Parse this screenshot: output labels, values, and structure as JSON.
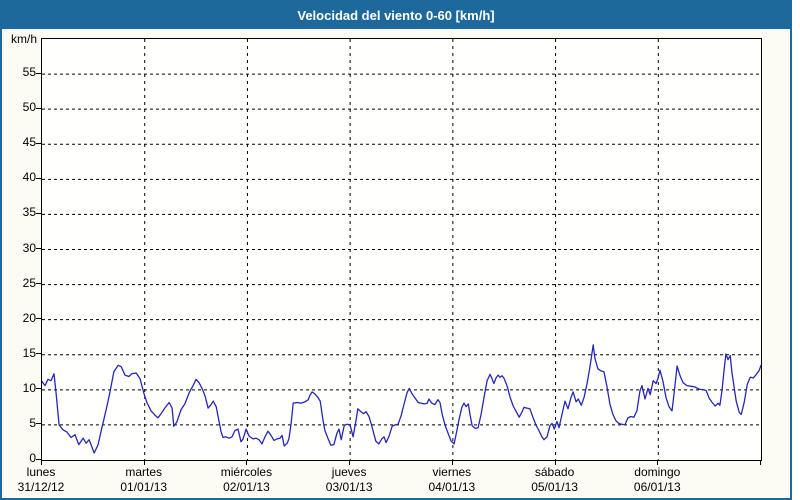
{
  "window": {
    "title": "Velocidad del viento 0-60 [km/h]"
  },
  "colors": {
    "frame": "#1e699c",
    "titlebar_bg": "#1e699c",
    "title_text": "#ffffff",
    "content_bg": "#fcfcf4",
    "plot_bg": "#fffffe",
    "grid": "#000000",
    "axis_text": "#000000",
    "line": "#2626b8"
  },
  "chart_data": {
    "type": "line",
    "title": "Velocidad del viento 0-60 [km/h]",
    "ylabel": "km/h",
    "xlabel": "",
    "ylim": [
      0,
      60
    ],
    "ytick_step": 5,
    "ytick_labels": [
      "0",
      "5",
      "10",
      "15",
      "20",
      "25",
      "30",
      "35",
      "40",
      "45",
      "50",
      "55"
    ],
    "grid": "dashed",
    "legend": "none",
    "x_unit": "hours",
    "xlim": [
      0,
      168
    ],
    "days": [
      {
        "name": "lunes",
        "date": "31/12/12"
      },
      {
        "name": "martes",
        "date": "01/01/13"
      },
      {
        "name": "miércoles",
        "date": "02/01/13"
      },
      {
        "name": "jueves",
        "date": "03/01/13"
      },
      {
        "name": "viernes",
        "date": "04/01/13"
      },
      {
        "name": "sábado",
        "date": "05/01/13"
      },
      {
        "name": "domingo",
        "date": "06/01/13"
      }
    ],
    "series": [
      {
        "name": "Velocidad del viento",
        "color": "#2626b8",
        "points": [
          [
            0,
            11.2
          ],
          [
            0.7,
            10.6
          ],
          [
            1.4,
            11.5
          ],
          [
            2.1,
            11.3
          ],
          [
            2.8,
            12.3
          ],
          [
            3.3,
            9.5
          ],
          [
            4,
            5
          ],
          [
            4.9,
            4.3
          ],
          [
            5.8,
            4
          ],
          [
            6.8,
            3.2
          ],
          [
            7.7,
            3.6
          ],
          [
            8.6,
            2.2
          ],
          [
            9.6,
            3.1
          ],
          [
            10.3,
            2.4
          ],
          [
            11,
            2.9
          ],
          [
            12.2,
            1
          ],
          [
            13.1,
            2.2
          ],
          [
            14,
            4.6
          ],
          [
            15,
            7.2
          ],
          [
            15.9,
            9.7
          ],
          [
            16.8,
            12.6
          ],
          [
            17.8,
            13.5
          ],
          [
            18.5,
            13.3
          ],
          [
            19.4,
            12.1
          ],
          [
            20.3,
            11.9
          ],
          [
            21,
            12.3
          ],
          [
            22,
            12.4
          ],
          [
            22.9,
            11.6
          ],
          [
            23.8,
            9.5
          ],
          [
            24.5,
            8.2
          ],
          [
            25.5,
            7
          ],
          [
            26.4,
            6.4
          ],
          [
            27.1,
            6
          ],
          [
            27.8,
            6.6
          ],
          [
            28.7,
            7.4
          ],
          [
            29.7,
            8.2
          ],
          [
            30.4,
            7.4
          ],
          [
            30.8,
            4.8
          ],
          [
            31.5,
            5.4
          ],
          [
            32.5,
            7.2
          ],
          [
            33.4,
            8
          ],
          [
            34.4,
            9.6
          ],
          [
            35.3,
            10.6
          ],
          [
            36,
            11.5
          ],
          [
            36.7,
            11
          ],
          [
            37.4,
            10.2
          ],
          [
            38.1,
            9.1
          ],
          [
            38.8,
            7.4
          ],
          [
            39.5,
            7.9
          ],
          [
            40,
            8.4
          ],
          [
            40.7,
            7.6
          ],
          [
            41.4,
            5.4
          ],
          [
            41.8,
            4.1
          ],
          [
            42.3,
            3.2
          ],
          [
            43,
            3.3
          ],
          [
            43.7,
            3.1
          ],
          [
            44.4,
            3.3
          ],
          [
            45.1,
            4.2
          ],
          [
            45.8,
            4.4
          ],
          [
            46.5,
            2.6
          ],
          [
            47,
            3
          ],
          [
            47.7,
            4.4
          ],
          [
            48.4,
            3.4
          ],
          [
            49.3,
            3
          ],
          [
            50,
            3.1
          ],
          [
            50.7,
            2.9
          ],
          [
            51.4,
            2.3
          ],
          [
            52.1,
            3.3
          ],
          [
            52.8,
            4.1
          ],
          [
            53.5,
            3.5
          ],
          [
            54.2,
            2.8
          ],
          [
            54.9,
            3
          ],
          [
            55.6,
            3.1
          ],
          [
            56.1,
            3.5
          ],
          [
            56.6,
            2
          ],
          [
            57.3,
            2.4
          ],
          [
            57.7,
            3
          ],
          [
            58.2,
            5.2
          ],
          [
            58.7,
            8.1
          ],
          [
            59.6,
            8.2
          ],
          [
            60.5,
            8.1
          ],
          [
            61.5,
            8.3
          ],
          [
            62.2,
            8.6
          ],
          [
            62.6,
            9.2
          ],
          [
            63.1,
            9.7
          ],
          [
            63.8,
            9.4
          ],
          [
            64.5,
            8.9
          ],
          [
            65,
            8.4
          ],
          [
            65.7,
            5.5
          ],
          [
            66.1,
            4.2
          ],
          [
            66.8,
            3.1
          ],
          [
            67.5,
            2.1
          ],
          [
            68.2,
            2.2
          ],
          [
            68.9,
            3.8
          ],
          [
            69.4,
            4.4
          ],
          [
            69.9,
            2.9
          ],
          [
            70.6,
            4.9
          ],
          [
            71.3,
            5.1
          ],
          [
            72,
            5
          ],
          [
            72.7,
            3.3
          ],
          [
            73.4,
            5.7
          ],
          [
            73.8,
            7.3
          ],
          [
            74.5,
            6.9
          ],
          [
            75.2,
            6.6
          ],
          [
            75.7,
            6.9
          ],
          [
            76.4,
            6.2
          ],
          [
            76.9,
            5.2
          ],
          [
            77.6,
            3.6
          ],
          [
            78,
            2.7
          ],
          [
            78.7,
            2.3
          ],
          [
            79.4,
            3
          ],
          [
            79.9,
            3.3
          ],
          [
            80.4,
            2.5
          ],
          [
            81.1,
            3.4
          ],
          [
            81.8,
            4.8
          ],
          [
            82.5,
            5
          ],
          [
            83.2,
            5.1
          ],
          [
            83.9,
            6.3
          ],
          [
            84.6,
            8
          ],
          [
            85.3,
            9.6
          ],
          [
            85.8,
            10.2
          ],
          [
            86.5,
            9.4
          ],
          [
            87.2,
            8.8
          ],
          [
            87.9,
            8.2
          ],
          [
            88.6,
            8.1
          ],
          [
            89.3,
            8
          ],
          [
            90,
            8.1
          ],
          [
            90.4,
            8.7
          ],
          [
            91.1,
            8.1
          ],
          [
            91.8,
            7.9
          ],
          [
            92.5,
            8.6
          ],
          [
            93,
            8.2
          ],
          [
            93.5,
            6.5
          ],
          [
            94.2,
            4.9
          ],
          [
            94.9,
            3.8
          ],
          [
            95.6,
            2.7
          ],
          [
            96.3,
            2.3
          ],
          [
            96.7,
            3.5
          ],
          [
            97.4,
            5.6
          ],
          [
            98.1,
            7.5
          ],
          [
            98.6,
            8.1
          ],
          [
            99.1,
            7.6
          ],
          [
            99.6,
            8
          ],
          [
            100,
            6.5
          ],
          [
            100.5,
            4.9
          ],
          [
            101.2,
            4.5
          ],
          [
            101.9,
            4.6
          ],
          [
            102.6,
            6.5
          ],
          [
            103.3,
            9
          ],
          [
            104,
            11.3
          ],
          [
            104.7,
            12.2
          ],
          [
            105.2,
            11.5
          ],
          [
            105.6,
            10.9
          ],
          [
            106.1,
            11.7
          ],
          [
            106.6,
            12.1
          ],
          [
            107,
            11.8
          ],
          [
            107.5,
            12
          ],
          [
            108,
            11.6
          ],
          [
            108.7,
            10.5
          ],
          [
            109.4,
            8.9
          ],
          [
            110.1,
            7.7
          ],
          [
            110.8,
            6.9
          ],
          [
            111.5,
            6.1
          ],
          [
            112.2,
            6.9
          ],
          [
            112.6,
            7.5
          ],
          [
            113.3,
            7.4
          ],
          [
            114,
            7.3
          ],
          [
            114.7,
            6.1
          ],
          [
            115.4,
            5
          ],
          [
            116.1,
            4.2
          ],
          [
            116.8,
            3.3
          ],
          [
            117.3,
            2.9
          ],
          [
            118,
            3.3
          ],
          [
            118.7,
            4.9
          ],
          [
            119.2,
            5.2
          ],
          [
            119.7,
            4.4
          ],
          [
            120.3,
            5.5
          ],
          [
            120.8,
            4.6
          ],
          [
            121.5,
            6.5
          ],
          [
            122.2,
            8.4
          ],
          [
            122.9,
            7.3
          ],
          [
            123.6,
            8.9
          ],
          [
            124.1,
            9.7
          ],
          [
            124.8,
            8.3
          ],
          [
            125.3,
            8.7
          ],
          [
            126,
            7.8
          ],
          [
            126.7,
            9
          ],
          [
            127.4,
            11
          ],
          [
            128.1,
            13.5
          ],
          [
            128.8,
            16.4
          ],
          [
            129.2,
            14.5
          ],
          [
            129.9,
            13
          ],
          [
            130.6,
            12.7
          ],
          [
            131.3,
            12.6
          ],
          [
            132,
            10.5
          ],
          [
            132.7,
            8
          ],
          [
            133.4,
            6.5
          ],
          [
            134.1,
            5.6
          ],
          [
            134.8,
            5.2
          ],
          [
            135.5,
            5.1
          ],
          [
            136.2,
            5
          ],
          [
            136.9,
            6
          ],
          [
            137.6,
            6.2
          ],
          [
            138.3,
            6.1
          ],
          [
            139,
            7
          ],
          [
            139.7,
            9.8
          ],
          [
            140.2,
            10.6
          ],
          [
            140.9,
            8.7
          ],
          [
            141.6,
            10.2
          ],
          [
            142.1,
            9.3
          ],
          [
            142.8,
            11.3
          ],
          [
            143.5,
            10.9
          ],
          [
            143.9,
            11.6
          ],
          [
            144.4,
            12.8
          ],
          [
            145.1,
            11.2
          ],
          [
            145.8,
            8.9
          ],
          [
            146.5,
            7.6
          ],
          [
            147.2,
            7
          ],
          [
            147.7,
            9.5
          ],
          [
            148.4,
            13.4
          ],
          [
            149.1,
            12
          ],
          [
            149.8,
            11
          ],
          [
            150.7,
            10.6
          ],
          [
            151.7,
            10.5
          ],
          [
            152.6,
            10.4
          ],
          [
            153.5,
            10.1
          ],
          [
            154.5,
            10
          ],
          [
            155.2,
            9.9
          ],
          [
            155.9,
            8.8
          ],
          [
            156.6,
            8.2
          ],
          [
            157.3,
            7.7
          ],
          [
            158,
            8.1
          ],
          [
            158.4,
            7.8
          ],
          [
            158.9,
            10
          ],
          [
            159.4,
            13
          ],
          [
            159.8,
            15.1
          ],
          [
            160.3,
            14.3
          ],
          [
            160.8,
            14.9
          ],
          [
            161.2,
            12.5
          ],
          [
            161.7,
            10.5
          ],
          [
            162.2,
            8.4
          ],
          [
            162.9,
            6.8
          ],
          [
            163.4,
            6.5
          ],
          [
            164.1,
            8.3
          ],
          [
            164.8,
            10.8
          ],
          [
            165.5,
            11.8
          ],
          [
            166.2,
            11.7
          ],
          [
            166.9,
            12.2
          ],
          [
            167.6,
            12.8
          ],
          [
            168,
            13.5
          ]
        ]
      }
    ]
  }
}
